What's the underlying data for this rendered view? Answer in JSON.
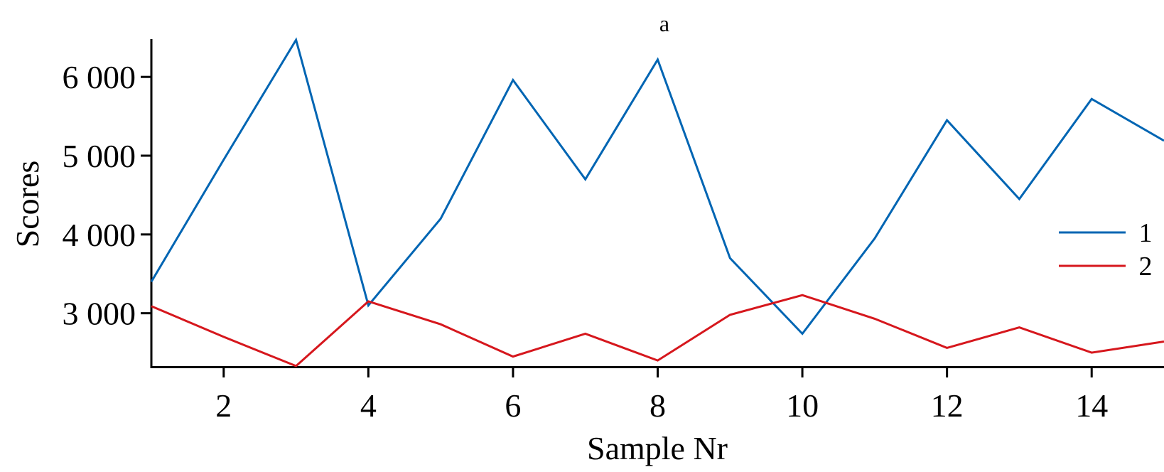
{
  "chart_data": {
    "type": "line",
    "title": "a",
    "xlabel": "Sample Nr",
    "ylabel": "Scores",
    "xlim": [
      1,
      15
    ],
    "ylim": [
      2320,
      6480
    ],
    "xticks": [
      2,
      4,
      6,
      8,
      10,
      12,
      14
    ],
    "yticks": [
      3000,
      4000,
      5000,
      6000
    ],
    "ytick_labels": [
      "3 000",
      "4 000",
      "5 000",
      "6 000"
    ],
    "xtick_labels": [
      "2",
      "4",
      "6",
      "8",
      "10",
      "12",
      "14"
    ],
    "grid": false,
    "legend": {
      "placement": "right",
      "entries": [
        "1",
        "2"
      ]
    },
    "x": [
      1,
      2,
      3,
      4,
      5,
      6,
      7,
      8,
      9,
      10,
      11,
      12,
      13,
      14,
      15
    ],
    "series": [
      {
        "name": "1",
        "color": "#0065b3",
        "values": [
          3400,
          4950,
          6470,
          3100,
          4200,
          5960,
          4700,
          6220,
          3700,
          2740,
          3950,
          5450,
          4450,
          5720,
          5190
        ]
      },
      {
        "name": "2",
        "color": "#d6171d",
        "values": [
          3090,
          2700,
          2330,
          3150,
          2860,
          2450,
          2740,
          2400,
          2980,
          3230,
          2930,
          2560,
          2820,
          2500,
          2640
        ]
      }
    ]
  }
}
